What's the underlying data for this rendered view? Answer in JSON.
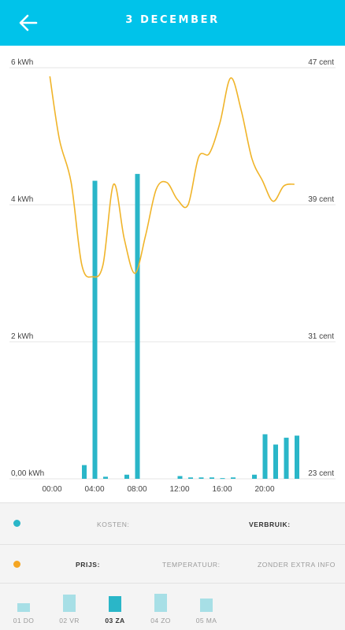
{
  "header": {
    "title": "3 DECEMBER",
    "back_icon": "arrow-left-icon",
    "color": "#00c3ea"
  },
  "legend": {
    "row1": {
      "kosten": "KOSTEN:",
      "verbruik": "VERBRUIK:",
      "dot_color": "#2ab6c8"
    },
    "row2": {
      "prijs": "PRIJS:",
      "temperatuur": "TEMPERATUUR:",
      "zonder": "ZONDER EXTRA INFO",
      "dot_color": "#f5a623"
    }
  },
  "days": [
    {
      "label": "01 DO",
      "level": 0.31,
      "active": false
    },
    {
      "label": "02 VR",
      "level": 0.64,
      "active": false
    },
    {
      "label": "03 ZA",
      "level": 0.58,
      "active": true
    },
    {
      "label": "04 ZO",
      "level": 0.69,
      "active": false
    },
    {
      "label": "05 MA",
      "level": 0.5,
      "active": false
    }
  ],
  "chart_data": {
    "type": "bar+line",
    "y_left": {
      "ticks": [
        "0,00 kWh",
        "2 kWh",
        "4 kWh",
        "6 kWh"
      ],
      "range": [
        0,
        6
      ]
    },
    "y_right": {
      "ticks": [
        "23 cent",
        "31 cent",
        "39 cent",
        "47 cent"
      ],
      "range": [
        23,
        47
      ]
    },
    "x_ticks": [
      "00:00",
      "04:00",
      "08:00",
      "12:00",
      "16:00",
      "20:00"
    ],
    "bar_color": "#2ab6c8",
    "line_color": "#f0b429",
    "bars": [
      {
        "x": 3.0,
        "y": 0.2
      },
      {
        "x": 4.0,
        "y": 4.35
      },
      {
        "x": 5.0,
        "y": 0.03
      },
      {
        "x": 7.0,
        "y": 0.06
      },
      {
        "x": 8.0,
        "y": 4.45
      },
      {
        "x": 12.0,
        "y": 0.04
      },
      {
        "x": 13.0,
        "y": 0.02
      },
      {
        "x": 14.0,
        "y": 0.02
      },
      {
        "x": 15.0,
        "y": 0.02
      },
      {
        "x": 16.0,
        "y": 0.01
      },
      {
        "x": 17.0,
        "y": 0.02
      },
      {
        "x": 19.0,
        "y": 0.06
      },
      {
        "x": 20.0,
        "y": 0.65
      },
      {
        "x": 21.0,
        "y": 0.5
      },
      {
        "x": 22.0,
        "y": 0.6
      },
      {
        "x": 23.0,
        "y": 0.63
      }
    ],
    "price": [
      {
        "x": -0.2,
        "y": 46.5
      },
      {
        "x": 0.7,
        "y": 42.8
      },
      {
        "x": 1.8,
        "y": 40.3
      },
      {
        "x": 2.8,
        "y": 35.5
      },
      {
        "x": 3.8,
        "y": 34.8
      },
      {
        "x": 4.8,
        "y": 35.5
      },
      {
        "x": 5.8,
        "y": 40.2
      },
      {
        "x": 6.8,
        "y": 37.0
      },
      {
        "x": 7.8,
        "y": 35.0
      },
      {
        "x": 8.8,
        "y": 37.2
      },
      {
        "x": 9.8,
        "y": 39.9
      },
      {
        "x": 10.8,
        "y": 40.3
      },
      {
        "x": 11.8,
        "y": 39.3
      },
      {
        "x": 12.8,
        "y": 39.0
      },
      {
        "x": 13.8,
        "y": 41.8
      },
      {
        "x": 14.8,
        "y": 42.0
      },
      {
        "x": 15.8,
        "y": 43.8
      },
      {
        "x": 16.8,
        "y": 46.4
      },
      {
        "x": 17.8,
        "y": 44.5
      },
      {
        "x": 18.8,
        "y": 41.7
      },
      {
        "x": 19.8,
        "y": 40.4
      },
      {
        "x": 20.8,
        "y": 39.2
      },
      {
        "x": 21.8,
        "y": 40.1
      },
      {
        "x": 22.8,
        "y": 40.2
      }
    ]
  }
}
